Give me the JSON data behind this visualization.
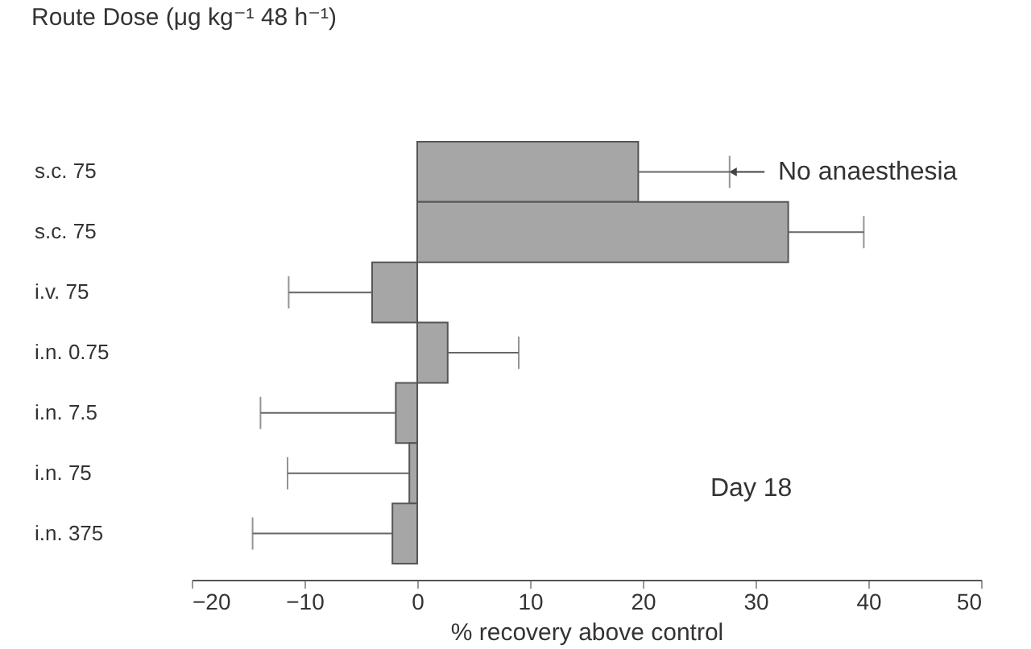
{
  "chart_data": {
    "type": "bar",
    "orientation": "horizontal",
    "ylabel": "Route Dose (μg kg⁻¹ 48 h⁻¹)",
    "xlabel": "% recovery above control",
    "categories": [
      "s.c.    75",
      "s.c.    75",
      "i.v.    75",
      "i.n.    0.75",
      "i.n.    7.5",
      "i.n.    75",
      "i.n.    375"
    ],
    "series": [
      {
        "color": "#a6a6a6",
        "values": [
          19.6,
          32.9,
          -4.0,
          2.7,
          -1.9,
          -0.7,
          -2.2
        ],
        "errors": [
          [
            19.6,
            27.7
          ],
          [
            32.9,
            39.6
          ],
          [
            -11.4,
            -4.0
          ],
          [
            2.7,
            9.0
          ],
          [
            -13.9,
            -1.9
          ],
          [
            -11.5,
            -0.7
          ],
          [
            -14.6,
            -2.2
          ]
        ]
      }
    ],
    "xlim": [
      -20,
      50
    ],
    "xticks": [
      -20,
      -10,
      0,
      10,
      20,
      30,
      40,
      50
    ],
    "annotations": [
      {
        "text": "No anaesthesia",
        "x": 28,
        "y": "s.c.    75"
      },
      "Day 18"
    ],
    "grid": false
  }
}
